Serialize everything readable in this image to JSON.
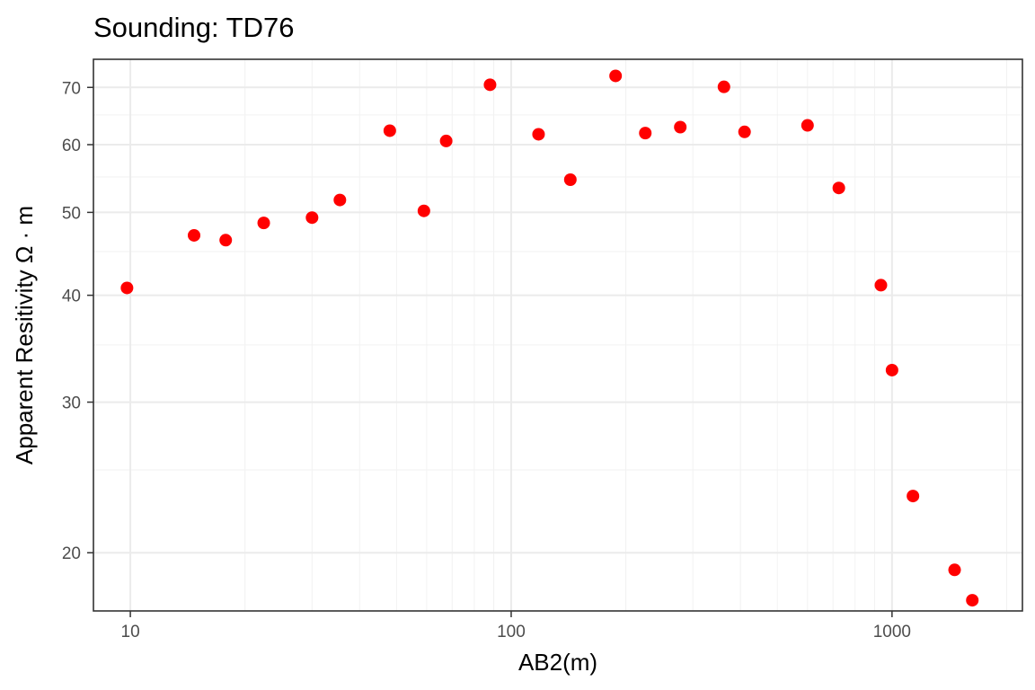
{
  "chart_data": {
    "type": "scatter",
    "title": "Sounding:  TD76",
    "xlabel": "AB2(m)",
    "ylabel": "Apparent Resitivity Ω · m",
    "x_scale": "log10",
    "y_scale": "log10",
    "xlim": [
      8,
      2200
    ],
    "ylim": [
      17.1,
      75.5
    ],
    "x_major_ticks": [
      10,
      100,
      1000
    ],
    "x_tick_labels": [
      "10",
      "100",
      "1000"
    ],
    "x_minor_ticks": [
      20,
      30,
      40,
      50,
      60,
      70,
      80,
      90,
      200,
      300,
      400,
      500,
      600,
      700,
      800,
      900,
      2000
    ],
    "y_major_ticks": [
      20,
      30,
      40,
      50,
      60,
      70
    ],
    "y_tick_labels": [
      "20",
      "30",
      "40",
      "50",
      "60",
      "70"
    ],
    "y_minor_ticks": [
      25,
      35,
      45,
      55,
      65
    ],
    "grid": true,
    "legend": "none",
    "point_color": "#ff0000",
    "points": [
      {
        "x": 9.8,
        "y": 40.8
      },
      {
        "x": 14.7,
        "y": 47.0
      },
      {
        "x": 17.8,
        "y": 46.4
      },
      {
        "x": 22.4,
        "y": 48.6
      },
      {
        "x": 30.0,
        "y": 49.3
      },
      {
        "x": 35.5,
        "y": 51.7
      },
      {
        "x": 48.0,
        "y": 62.3
      },
      {
        "x": 59.0,
        "y": 50.2
      },
      {
        "x": 67.5,
        "y": 60.6
      },
      {
        "x": 88.0,
        "y": 70.5
      },
      {
        "x": 118.0,
        "y": 61.7
      },
      {
        "x": 143.0,
        "y": 54.6
      },
      {
        "x": 188.0,
        "y": 72.2
      },
      {
        "x": 225.0,
        "y": 61.9
      },
      {
        "x": 278.0,
        "y": 62.9
      },
      {
        "x": 362.0,
        "y": 70.1
      },
      {
        "x": 410.0,
        "y": 62.1
      },
      {
        "x": 600.0,
        "y": 63.2
      },
      {
        "x": 725.0,
        "y": 53.4
      },
      {
        "x": 935.0,
        "y": 41.1
      },
      {
        "x": 1000.0,
        "y": 32.7
      },
      {
        "x": 1135.0,
        "y": 23.3
      },
      {
        "x": 1460.0,
        "y": 19.1
      },
      {
        "x": 1625.0,
        "y": 17.6
      }
    ]
  }
}
